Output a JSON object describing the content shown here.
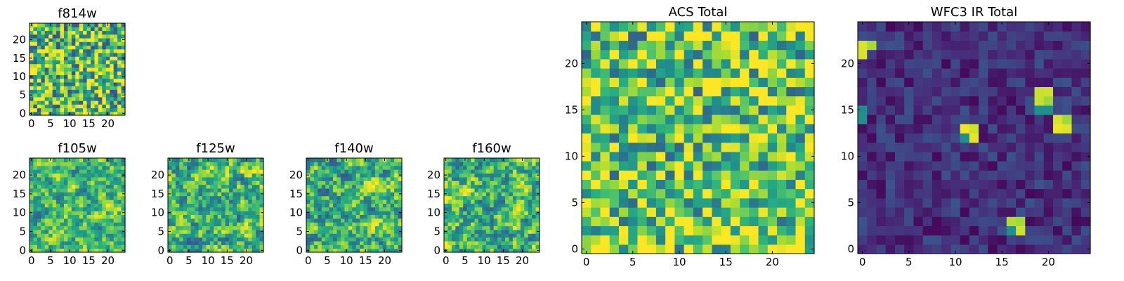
{
  "figure": {
    "panels": [
      {
        "id": "f814w",
        "title": "f814w",
        "size": 24,
        "seed": 814,
        "base": 0.7,
        "noise": 0.45,
        "smooth": 0,
        "xticks": [
          0,
          5,
          10,
          15,
          20
        ],
        "yticks": [
          0,
          5,
          10,
          15,
          20
        ]
      },
      {
        "id": "f105w",
        "title": "f105w",
        "size": 24,
        "seed": 105,
        "base": 0.68,
        "noise": 0.5,
        "smooth": 1,
        "xticks": [
          0,
          5,
          10,
          15,
          20
        ],
        "yticks": [
          0,
          5,
          10,
          15,
          20
        ]
      },
      {
        "id": "f125w",
        "title": "f125w",
        "size": 24,
        "seed": 125,
        "base": 0.66,
        "noise": 0.55,
        "smooth": 1,
        "xticks": [
          0,
          5,
          10,
          15,
          20
        ],
        "yticks": [
          0,
          5,
          10,
          15,
          20
        ]
      },
      {
        "id": "f140w",
        "title": "f140w",
        "size": 24,
        "seed": 140,
        "base": 0.66,
        "noise": 0.55,
        "smooth": 1,
        "xticks": [
          0,
          5,
          10,
          15,
          20
        ],
        "yticks": [
          0,
          5,
          10,
          15,
          20
        ]
      },
      {
        "id": "f160w",
        "title": "f160w",
        "size": 24,
        "seed": 160,
        "base": 0.66,
        "noise": 0.55,
        "smooth": 1,
        "xticks": [
          0,
          5,
          10,
          15,
          20
        ],
        "yticks": [
          0,
          5,
          10,
          15,
          20
        ]
      },
      {
        "id": "acs_total",
        "title": "ACS Total",
        "size": 24,
        "seed": 999,
        "base": 0.72,
        "noise": 0.4,
        "smooth": 0,
        "xticks": [
          0,
          5,
          10,
          15,
          20
        ],
        "yticks": [
          0,
          5,
          10,
          15,
          20
        ]
      },
      {
        "id": "wfc3_ir_total",
        "title": "WFC3 IR Total",
        "size": 24,
        "seed": 311,
        "base": 0.14,
        "noise": 0.12,
        "smooth": 0,
        "xticks": [
          0,
          5,
          10,
          15,
          20
        ],
        "yticks": [
          0,
          5,
          10,
          15,
          20
        ]
      }
    ]
  },
  "chart_data": [
    {
      "type": "heatmap",
      "title": "f814w",
      "x_range": [
        0,
        24
      ],
      "y_range": [
        0,
        24
      ],
      "colormap": "viridis"
    },
    {
      "type": "heatmap",
      "title": "f105w",
      "x_range": [
        0,
        24
      ],
      "y_range": [
        0,
        24
      ],
      "colormap": "viridis"
    },
    {
      "type": "heatmap",
      "title": "f125w",
      "x_range": [
        0,
        24
      ],
      "y_range": [
        0,
        24
      ],
      "colormap": "viridis"
    },
    {
      "type": "heatmap",
      "title": "f140w",
      "x_range": [
        0,
        24
      ],
      "y_range": [
        0,
        24
      ],
      "colormap": "viridis"
    },
    {
      "type": "heatmap",
      "title": "f160w",
      "x_range": [
        0,
        24
      ],
      "y_range": [
        0,
        24
      ],
      "colormap": "viridis"
    },
    {
      "type": "heatmap",
      "title": "ACS Total",
      "x_range": [
        0,
        24
      ],
      "y_range": [
        0,
        24
      ],
      "colormap": "viridis",
      "bright_cells": [
        [
          13,
          18
        ],
        [
          14,
          18
        ],
        [
          13,
          17
        ],
        [
          14,
          17
        ]
      ]
    },
    {
      "type": "heatmap",
      "title": "WFC3 IR Total",
      "x_range": [
        0,
        24
      ],
      "y_range": [
        0,
        24
      ],
      "colormap": "viridis",
      "bright_cells": [
        [
          0,
          22
        ],
        [
          0,
          21
        ],
        [
          1,
          22
        ],
        [
          19,
          17
        ],
        [
          20,
          17
        ],
        [
          19,
          16
        ],
        [
          20,
          16
        ],
        [
          21,
          14
        ],
        [
          21,
          13
        ],
        [
          22,
          14
        ],
        [
          22,
          13
        ],
        [
          11,
          13
        ],
        [
          12,
          13
        ],
        [
          11,
          12
        ],
        [
          12,
          12
        ],
        [
          16,
          3
        ],
        [
          17,
          3
        ],
        [
          17,
          2
        ],
        [
          16,
          2
        ]
      ]
    }
  ],
  "colors": {
    "axis": "#000000",
    "background": "#ffffff"
  }
}
